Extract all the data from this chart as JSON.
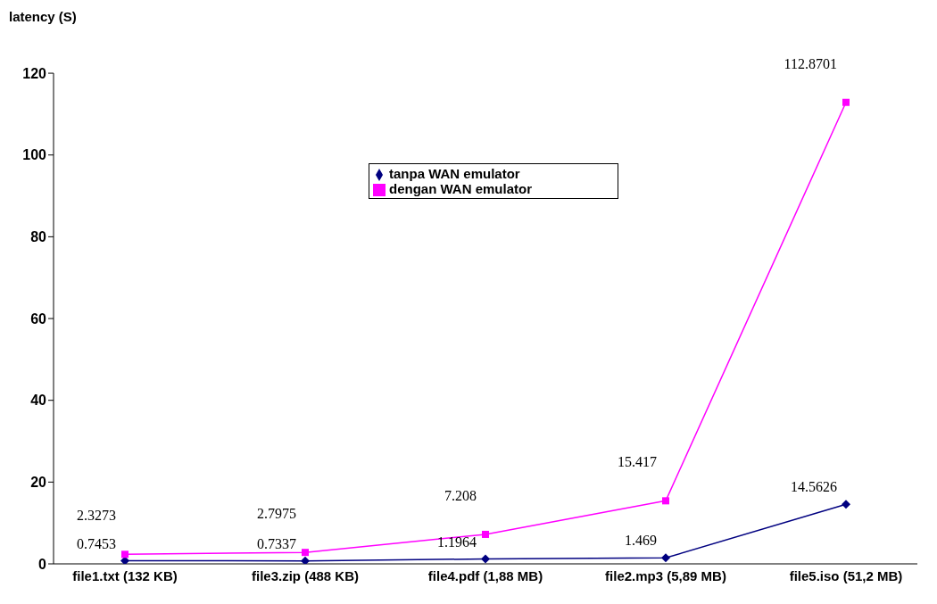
{
  "chart_data": {
    "type": "line",
    "ylabel": "latency (S)",
    "categories": [
      "file1.txt (132 KB)",
      "file3.zip (488 KB)",
      "file4.pdf (1,88 MB)",
      "file2.mp3 (5,89 MB)",
      "file5.iso (51,2 MB)"
    ],
    "series": [
      {
        "name": "tanpa WAN emulator",
        "color": "#000080",
        "marker": "diamond",
        "values": [
          0.7453,
          0.7337,
          1.1964,
          1.469,
          14.5626
        ]
      },
      {
        "name": "dengan WAN emulator",
        "color": "#ff00ff",
        "marker": "square",
        "values": [
          2.3273,
          2.7975,
          7.208,
          15.417,
          112.8701
        ]
      }
    ],
    "ylim": [
      0,
      120
    ],
    "yticks": [
      0,
      20,
      40,
      60,
      80,
      100,
      120
    ],
    "grid": false,
    "legend": "top",
    "data_labels": true
  }
}
